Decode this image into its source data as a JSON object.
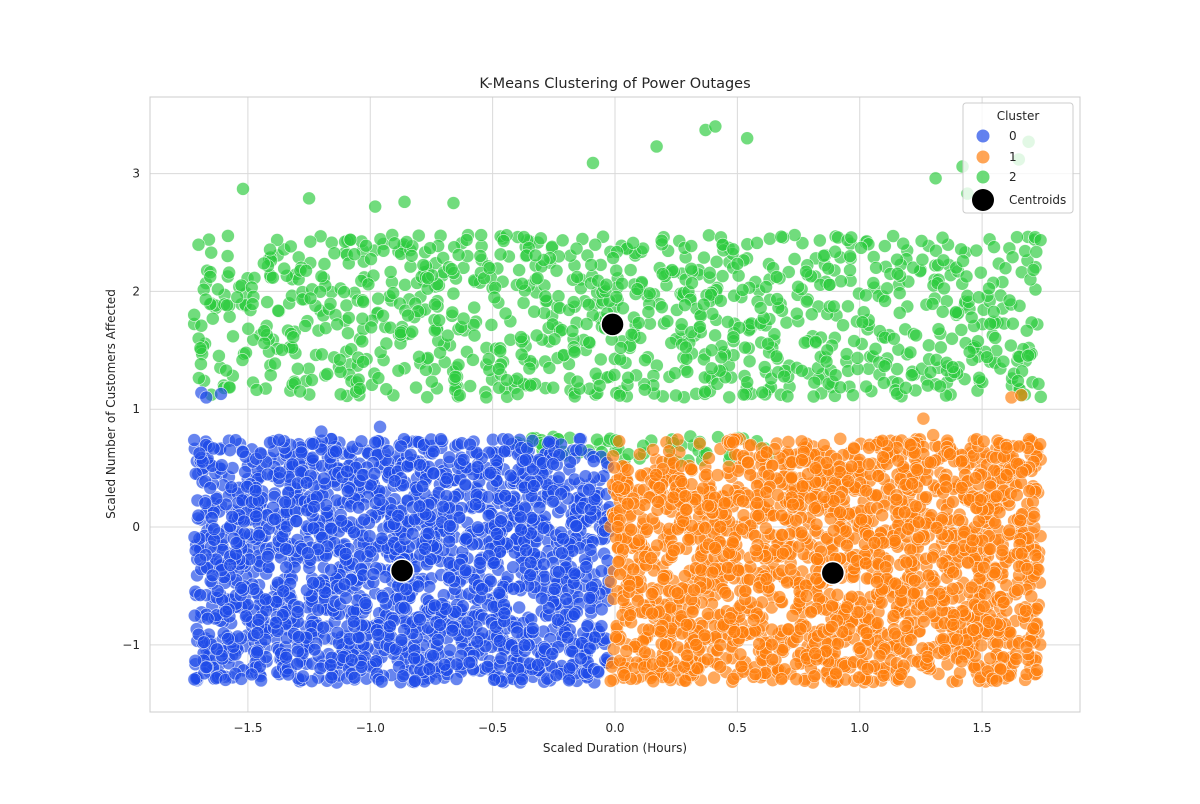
{
  "chart_data": {
    "type": "scatter",
    "title": "K-Means Clustering of Power Outages",
    "xlabel": "Scaled Duration (Hours)",
    "ylabel": "Scaled Number of Customers Affected",
    "xlim": [
      -1.9,
      1.9
    ],
    "ylim": [
      -1.57,
      3.65
    ],
    "x_ticks": [
      -1.5,
      -1.0,
      -0.5,
      0.0,
      0.5,
      1.0,
      1.5
    ],
    "x_tick_labels": [
      "−1.5",
      "−1.0",
      "−0.5",
      "0.0",
      "0.5",
      "1.0",
      "1.5"
    ],
    "y_ticks": [
      -1,
      0,
      1,
      2,
      3
    ],
    "y_tick_labels": [
      "−1",
      "0",
      "1",
      "2",
      "3"
    ],
    "grid": true,
    "legend": {
      "title": "Cluster",
      "placement": "top-right",
      "entries": [
        "0",
        "1",
        "2",
        "Centroids"
      ]
    },
    "colors": {
      "0": "#1f4be8",
      "1": "#ff7f0e",
      "2": "#2ecc40",
      "Centroids": "#000000"
    },
    "series": [
      {
        "name": "0",
        "description_of_extent": "dense uniform block",
        "x_range": [
          -1.72,
          -0.02
        ],
        "y_range": [
          -1.32,
          0.75
        ],
        "approx_count": 2200,
        "outliers": [
          [
            -1.69,
            1.14
          ],
          [
            -1.67,
            1.1
          ],
          [
            -1.61,
            1.13
          ],
          [
            -0.96,
            0.85
          ],
          [
            -1.2,
            0.81
          ]
        ]
      },
      {
        "name": "1",
        "description_of_extent": "dense uniform block",
        "x_range": [
          -0.02,
          1.74
        ],
        "y_range": [
          -1.32,
          0.75
        ],
        "approx_count": 2200,
        "outliers": [
          [
            1.26,
            0.92
          ],
          [
            1.3,
            0.78
          ],
          [
            1.62,
            1.1
          ],
          [
            1.66,
            1.12
          ]
        ]
      },
      {
        "name": "2",
        "description_of_extent": "band above other clusters",
        "x_range": [
          -1.72,
          1.74
        ],
        "y_range": [
          1.1,
          2.48
        ],
        "approx_count": 1100,
        "outliers": [
          [
            -1.52,
            2.87
          ],
          [
            -1.25,
            2.79
          ],
          [
            -0.98,
            2.72
          ],
          [
            -0.86,
            2.76
          ],
          [
            -0.66,
            2.75
          ],
          [
            -0.09,
            3.09
          ],
          [
            0.17,
            3.23
          ],
          [
            0.37,
            3.37
          ],
          [
            0.41,
            3.4
          ],
          [
            0.54,
            3.3
          ],
          [
            1.31,
            2.96
          ],
          [
            1.42,
            3.06
          ],
          [
            1.65,
            3.12
          ],
          [
            1.69,
            3.27
          ],
          [
            1.44,
            2.83
          ]
        ]
      }
    ],
    "centroids": [
      {
        "x": -0.87,
        "y": -0.37
      },
      {
        "x": 0.89,
        "y": -0.39
      },
      {
        "x": -0.01,
        "y": 1.72
      }
    ]
  }
}
